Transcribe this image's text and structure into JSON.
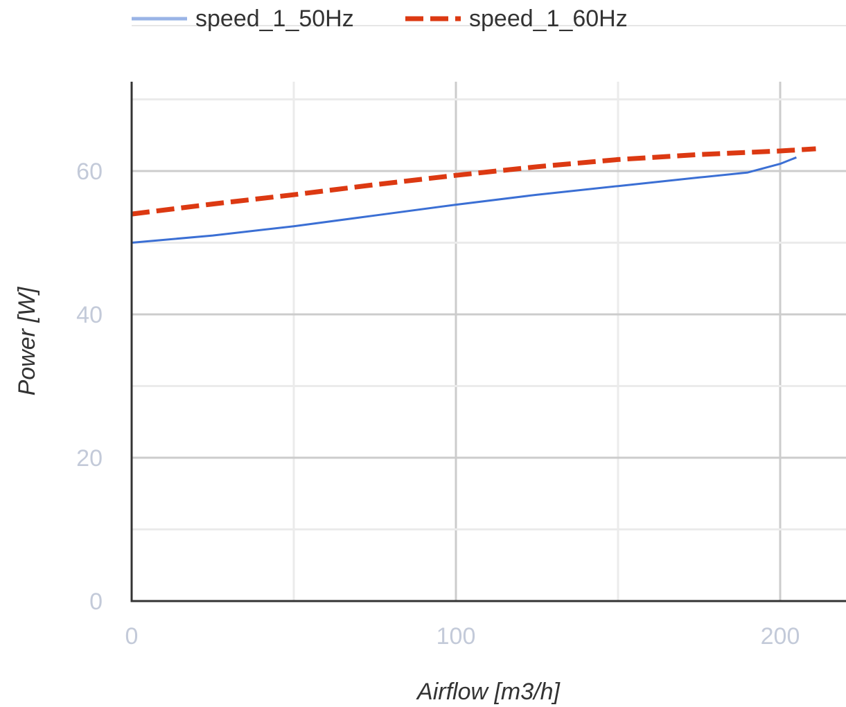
{
  "chart_data": {
    "type": "line",
    "xlabel": "Airflow [m3/h]",
    "ylabel": "Power [W]",
    "xlim": [
      0,
      220
    ],
    "ylim": [
      0,
      72
    ],
    "xticks": [
      0,
      100,
      200
    ],
    "xtick_labels": [
      "0",
      "100",
      "200"
    ],
    "yticks": [
      0,
      20,
      40,
      60
    ],
    "ytick_labels": [
      "0",
      "20",
      "40",
      "60"
    ],
    "x_minor_gridlines": [
      50,
      150
    ],
    "y_minor_gridlines": [
      10,
      30,
      50,
      70
    ],
    "grid": true,
    "legend_position": "top",
    "series": [
      {
        "name": "speed_1_50Hz",
        "color": "#3b6fd4",
        "legend_color": "#9ab4e6",
        "style": "solid",
        "x": [
          0,
          25,
          50,
          75,
          100,
          125,
          150,
          175,
          190,
          200,
          205
        ],
        "y": [
          50,
          51,
          52.3,
          53.8,
          55.3,
          56.7,
          57.9,
          59.1,
          59.8,
          61,
          61.9
        ]
      },
      {
        "name": "speed_1_60Hz",
        "color": "#dc3912",
        "legend_color": "#dc3912",
        "style": "dashed",
        "x": [
          0,
          25,
          50,
          75,
          100,
          125,
          150,
          175,
          200,
          211
        ],
        "y": [
          54,
          55.4,
          56.7,
          58.1,
          59.4,
          60.6,
          61.6,
          62.3,
          62.8,
          63.1
        ]
      }
    ]
  }
}
